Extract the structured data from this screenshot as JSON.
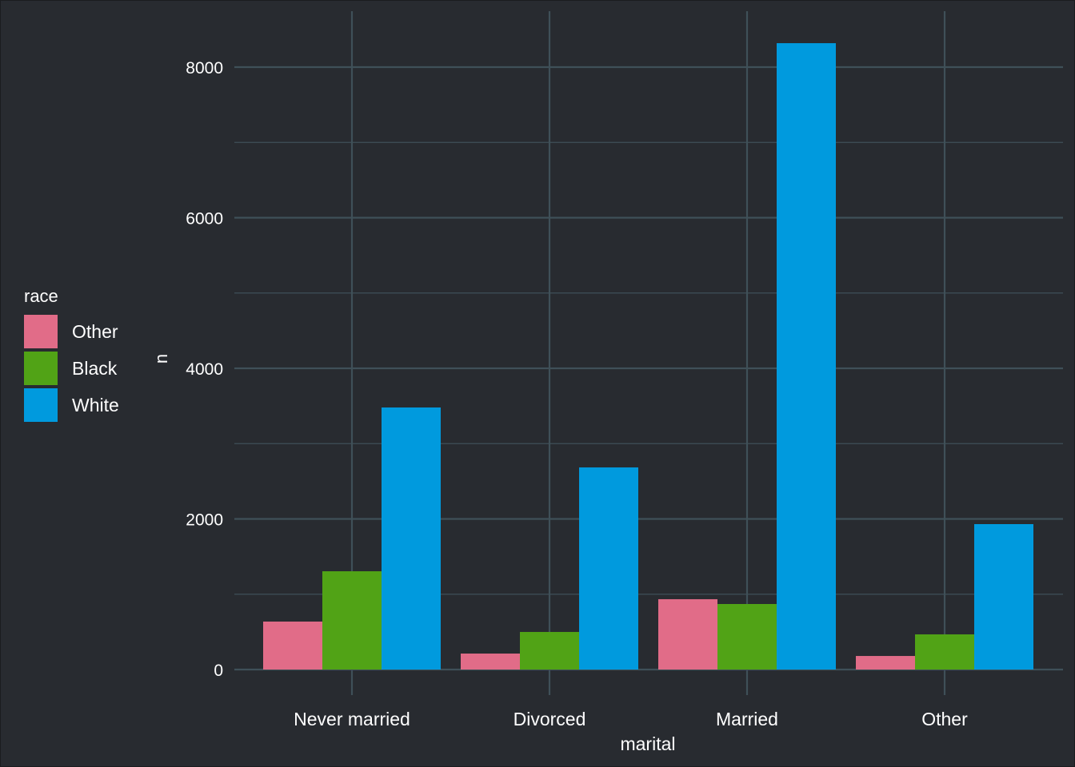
{
  "chart_data": {
    "type": "bar",
    "title": "",
    "xlabel": "marital",
    "ylabel": "n",
    "categories": [
      "Never married",
      "Divorced",
      "Married",
      "Other"
    ],
    "series": [
      {
        "name": "Other",
        "color": "#e16c88",
        "values": [
          637,
          212,
          934,
          180
        ]
      },
      {
        "name": "Black",
        "color": "#51a316",
        "values": [
          1305,
          499,
          870,
          467
        ]
      },
      {
        "name": "White",
        "color": "#009ade",
        "values": [
          3480,
          2684,
          8318,
          1931
        ]
      }
    ],
    "ylim": [
      0,
      8700
    ],
    "yticks": [
      0,
      2000,
      4000,
      6000,
      8000
    ],
    "grid": true,
    "legend_position": "left",
    "legend_title": "race"
  },
  "colors": {
    "background": "#282b30",
    "grid": "#3f5058",
    "text": "#ffffff"
  }
}
